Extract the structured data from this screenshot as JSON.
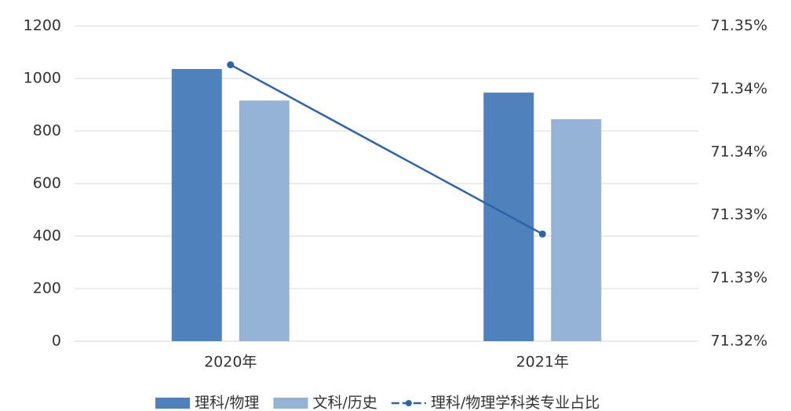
{
  "chart_data": {
    "type": "bar",
    "categories": [
      "2020年",
      "2021年"
    ],
    "series": [
      {
        "name": "理科/物理",
        "type": "bar",
        "color": "#4f81bd",
        "values": [
          1036,
          946
        ]
      },
      {
        "name": "文科/历史",
        "type": "bar",
        "color": "#95b3d7",
        "values": [
          916,
          845
        ]
      },
      {
        "name": "理科/物理学科类专业占比",
        "type": "line",
        "axis": "y2",
        "color": "#2e62ab",
        "values": [
          71.3463,
          71.3302
        ]
      }
    ],
    "ylim": [
      0,
      1200
    ],
    "yticks": [
      0,
      200,
      400,
      600,
      800,
      1000,
      1200
    ],
    "y2lim": [
      71.32,
      71.35
    ],
    "y2ticks": [
      {
        "value": 71.32,
        "label": "71.32%"
      },
      {
        "value": 71.326,
        "label": "71.33%"
      },
      {
        "value": 71.332,
        "label": "71.33%"
      },
      {
        "value": 71.338,
        "label": "71.34%"
      },
      {
        "value": 71.344,
        "label": "71.34%"
      },
      {
        "value": 71.35,
        "label": "71.35%"
      }
    ],
    "grid": true
  }
}
